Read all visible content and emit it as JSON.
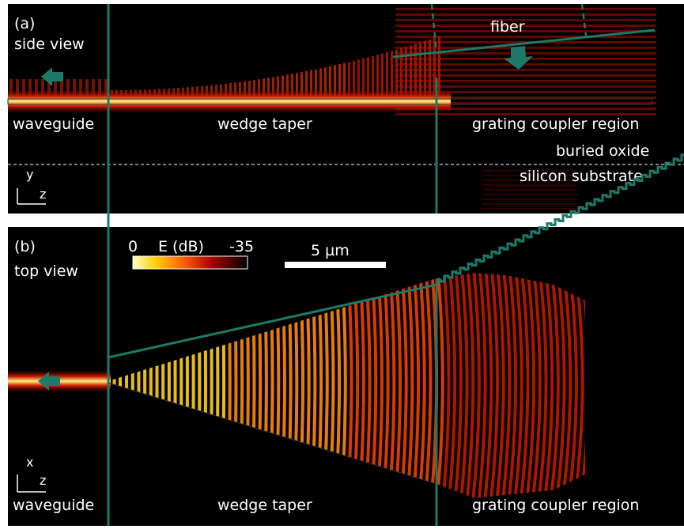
{
  "panel_a": {
    "label": "(a)",
    "view": "side view",
    "fiber": "fiber",
    "regions": [
      "waveguide",
      "wedge taper",
      "grating coupler region"
    ],
    "layers": [
      "buried oxide",
      "silicon substrate"
    ],
    "axes": [
      "y",
      "z"
    ]
  },
  "panel_b": {
    "label": "(b)",
    "view": "top view",
    "colorbar": {
      "min": "0",
      "title": "E (dB)",
      "max": "-35"
    },
    "scale_bar": "5 µm",
    "regions": [
      "waveguide",
      "wedge taper",
      "grating coupler region"
    ],
    "axes": [
      "x",
      "z"
    ]
  }
}
